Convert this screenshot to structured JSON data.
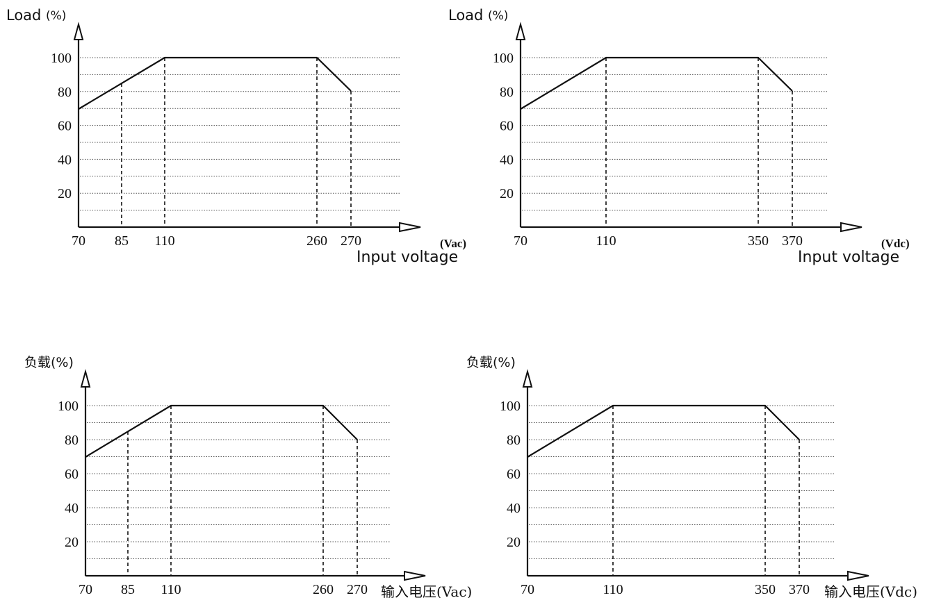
{
  "chart_data": [
    {
      "type": "line",
      "title": "",
      "ylabel": "Load",
      "ylabel_unit": "(%)",
      "xlabel": "Input voltage",
      "xlabel_unit": "(Vac)",
      "yticks": [
        "100",
        "80",
        "60",
        "40",
        "20"
      ],
      "ylim": [
        0,
        100
      ],
      "xticks": [
        "70",
        "85",
        "110",
        "260",
        "270"
      ],
      "grid": true,
      "series": [
        {
          "x": [
            70,
            110,
            260,
            270
          ],
          "y": [
            70,
            100,
            100,
            80
          ]
        }
      ],
      "dashed_drop_lines_at_x": [
        85,
        110,
        260,
        270
      ]
    },
    {
      "type": "line",
      "title": "",
      "ylabel": "Load",
      "ylabel_unit": "(%)",
      "xlabel": "Input voltage",
      "xlabel_unit": "(Vdc)",
      "yticks": [
        "100",
        "80",
        "60",
        "40",
        "20"
      ],
      "ylim": [
        0,
        100
      ],
      "xticks": [
        "70",
        "110",
        "350",
        "370"
      ],
      "grid": true,
      "series": [
        {
          "x": [
            70,
            110,
            350,
            370
          ],
          "y": [
            70,
            100,
            100,
            80
          ]
        }
      ],
      "dashed_drop_lines_at_x": [
        110,
        350,
        370
      ]
    },
    {
      "type": "line",
      "title": "",
      "ylabel": "负载(%)",
      "xlabel": "输入电压(Vac)",
      "yticks": [
        "100",
        "80",
        "60",
        "40",
        "20"
      ],
      "ylim": [
        0,
        100
      ],
      "xticks": [
        "70",
        "85",
        "110",
        "260",
        "270"
      ],
      "grid": true,
      "series": [
        {
          "x": [
            70,
            110,
            260,
            270
          ],
          "y": [
            70,
            100,
            100,
            80
          ]
        }
      ],
      "dashed_drop_lines_at_x": [
        85,
        110,
        260,
        270
      ]
    },
    {
      "type": "line",
      "title": "",
      "ylabel": "负载(%)",
      "xlabel": "输入电压(Vdc)",
      "yticks": [
        "100",
        "80",
        "60",
        "40",
        "20"
      ],
      "ylim": [
        0,
        100
      ],
      "xticks": [
        "70",
        "110",
        "350",
        "370"
      ],
      "grid": true,
      "series": [
        {
          "x": [
            70,
            110,
            350,
            370
          ],
          "y": [
            70,
            100,
            100,
            80
          ]
        }
      ],
      "dashed_drop_lines_at_x": [
        110,
        350,
        370
      ]
    }
  ]
}
